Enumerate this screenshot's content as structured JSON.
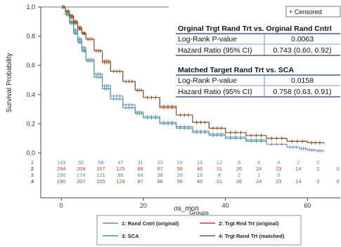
{
  "chart_data": {
    "type": "line",
    "ylabel": "Survival Probability",
    "xlabel": "os_mon",
    "xlim": [
      -5,
      68
    ],
    "ylim": [
      0,
      1.0
    ],
    "x_ticks": [
      0,
      20,
      40,
      60
    ],
    "y_ticks": [
      0.0,
      0.2,
      0.4,
      0.6,
      0.8,
      1.0
    ],
    "grid": false,
    "censored_label": "+ Censored",
    "legend_title": "Groups",
    "series": [
      {
        "name": "1: Rand Cntrl (original)",
        "short": "1",
        "color": "#6e86c8",
        "x": [
          0,
          1,
          2,
          3,
          4,
          5,
          6,
          8,
          10,
          12,
          15,
          18,
          20,
          24,
          28,
          32,
          36,
          40,
          45,
          50,
          55,
          58,
          60,
          62,
          64
        ],
        "y": [
          1.0,
          0.95,
          0.9,
          0.84,
          0.78,
          0.72,
          0.64,
          0.54,
          0.46,
          0.39,
          0.33,
          0.28,
          0.25,
          0.21,
          0.18,
          0.15,
          0.13,
          0.11,
          0.09,
          0.06,
          0.04,
          0.03,
          0.02,
          0.015,
          0.01
        ]
      },
      {
        "name": "2: Trgt Rnd Trt (original)",
        "short": "2",
        "color": "#b5472a",
        "x": [
          0,
          1,
          2,
          3,
          4,
          5,
          6,
          8,
          10,
          12,
          15,
          18,
          20,
          24,
          28,
          32,
          36,
          40,
          45,
          50,
          55,
          60,
          64
        ],
        "y": [
          1.0,
          0.97,
          0.93,
          0.89,
          0.85,
          0.82,
          0.78,
          0.7,
          0.62,
          0.56,
          0.49,
          0.43,
          0.38,
          0.32,
          0.26,
          0.21,
          0.17,
          0.14,
          0.12,
          0.1,
          0.08,
          0.07,
          0.06
        ]
      },
      {
        "name": "3: SCA",
        "short": "3",
        "color": "#3f9b84",
        "x": [
          0,
          1,
          2,
          3,
          4,
          5,
          6,
          8,
          10,
          12,
          15,
          18,
          20,
          24,
          28,
          32,
          36,
          40,
          45,
          50
        ],
        "y": [
          1.0,
          0.95,
          0.89,
          0.82,
          0.76,
          0.7,
          0.63,
          0.52,
          0.44,
          0.37,
          0.31,
          0.27,
          0.24,
          0.2,
          0.17,
          0.14,
          0.12,
          0.1,
          0.08,
          0.07
        ]
      },
      {
        "name": "4: Trgt Rand Trt (matched)",
        "short": "4",
        "color": "#7a5a2a",
        "x": [
          0,
          1,
          2,
          3,
          4,
          5,
          6,
          8,
          10,
          12,
          15,
          18,
          20,
          24,
          28,
          32,
          36,
          40,
          45,
          50,
          55,
          60,
          64
        ],
        "y": [
          1.0,
          0.97,
          0.94,
          0.9,
          0.86,
          0.82,
          0.78,
          0.7,
          0.63,
          0.56,
          0.49,
          0.43,
          0.38,
          0.31,
          0.26,
          0.21,
          0.17,
          0.14,
          0.12,
          0.1,
          0.08,
          0.07,
          0.07
        ]
      }
    ],
    "stats_table": {
      "block1_title": "Orginal Trgt Rand Trt vs. Orginal Rand Cntrl",
      "block1_rows": [
        {
          "label": "Log-Rank P-value",
          "value": "0.0063"
        },
        {
          "label": "Hazard Ratio (95% CI)",
          "value": "0.743 (0.60, 0.92)"
        }
      ],
      "block2_title": "Matched Target Rand Trt vs. SCA",
      "block2_rows": [
        {
          "label": "Log-Rank P-value",
          "value": "0.0158"
        },
        {
          "label": "Hazard Ratio (95% CI)",
          "value": "0.758 (0.63, 0.91)"
        }
      ]
    },
    "risk_table": {
      "rows": [
        {
          "label": "1",
          "color": "#6e86c8",
          "values": [
            "149",
            "92",
            "58",
            "47",
            "31",
            "23",
            "19",
            "13",
            "12",
            "8",
            "6",
            "4",
            "2",
            "0"
          ]
        },
        {
          "label": "2",
          "color": "#b5472a",
          "values": [
            "294",
            "209",
            "157",
            "125",
            "88",
            "67",
            "56",
            "40",
            "31",
            "26",
            "24",
            "23",
            "14",
            "2",
            "0"
          ]
        },
        {
          "label": "3",
          "color": "#3f9b84",
          "values": [
            "290",
            "174",
            "121",
            "86",
            "64",
            "38",
            "26",
            "19",
            "8",
            "2",
            "1",
            "0"
          ]
        },
        {
          "label": "4",
          "color": "#7a5a2a",
          "values": [
            "290",
            "207",
            "155",
            "124",
            "87",
            "66",
            "56",
            "40",
            "31",
            "26",
            "24",
            "23",
            "14",
            "2",
            "0"
          ]
        }
      ],
      "times": [
        0,
        5,
        10,
        15,
        20,
        25,
        30,
        35,
        40,
        45,
        50,
        55,
        60,
        65,
        70
      ]
    }
  }
}
